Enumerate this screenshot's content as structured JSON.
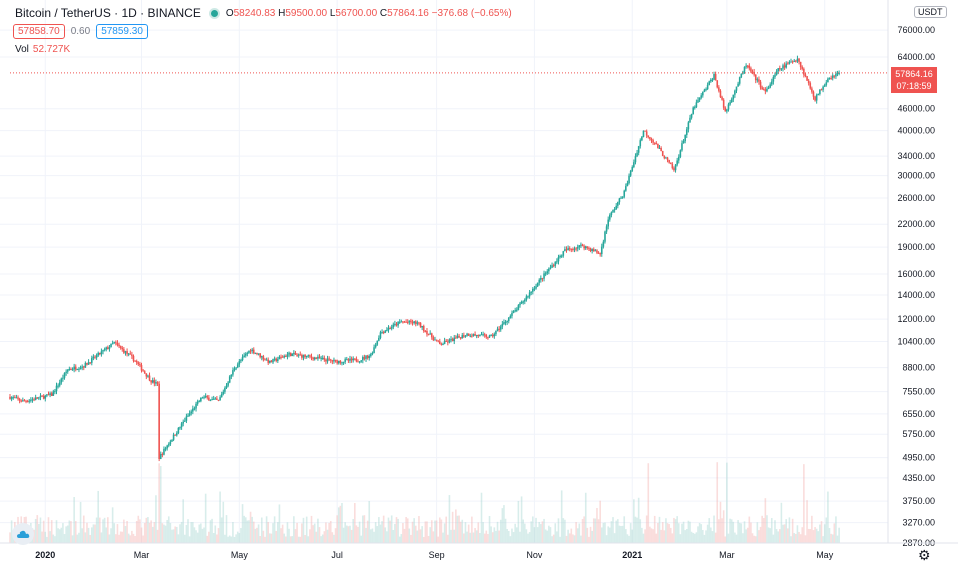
{
  "legend": {
    "symbol": "Bitcoin / TetherUS · 1D · BINANCE",
    "open_key": "O",
    "open": "58240.83",
    "high_key": "H",
    "high": "59500.00",
    "low_key": "L",
    "low": "56700.00",
    "close_key": "C",
    "close": "57864.16",
    "change": "−376.68 (−0.65%)"
  },
  "quotes": {
    "bid": "57858.70",
    "spread": "0.60",
    "ask": "57859.30"
  },
  "volume": {
    "label": "Vol",
    "value": "52.727K"
  },
  "currency": "USDT",
  "last_price": {
    "value": "57864.16",
    "countdown": "07:18:59"
  },
  "colors": {
    "up": "#26a69a",
    "down": "#ef5350",
    "grid": "#f0f3fa",
    "axis_text": "#131722"
  },
  "icons": {
    "logo": "tradingview-cloud-icon",
    "settings": "gear-icon"
  },
  "chart_data": {
    "type": "candlestick",
    "scale": "log",
    "ylim": [
      2870,
      87000
    ],
    "y_ticks": [
      {
        "label": "76000.00",
        "value": 76000
      },
      {
        "label": "64000.00",
        "value": 64000
      },
      {
        "label": "46000.00",
        "value": 46000
      },
      {
        "label": "40000.00",
        "value": 40000
      },
      {
        "label": "34000.00",
        "value": 34000
      },
      {
        "label": "30000.00",
        "value": 30000
      },
      {
        "label": "26000.00",
        "value": 26000
      },
      {
        "label": "22000.00",
        "value": 22000
      },
      {
        "label": "19000.00",
        "value": 19000
      },
      {
        "label": "16000.00",
        "value": 16000
      },
      {
        "label": "14000.00",
        "value": 14000
      },
      {
        "label": "12000.00",
        "value": 12000
      },
      {
        "label": "10400.00",
        "value": 10400
      },
      {
        "label": "8800.00",
        "value": 8800
      },
      {
        "label": "7550.00",
        "value": 7550
      },
      {
        "label": "6550.00",
        "value": 6550
      },
      {
        "label": "5750.00",
        "value": 5750
      },
      {
        "label": "4950.00",
        "value": 4950
      },
      {
        "label": "4350.00",
        "value": 4350
      },
      {
        "label": "3750.00",
        "value": 3750
      },
      {
        "label": "3270.00",
        "value": 3270
      },
      {
        "label": "2870.00",
        "value": 2870
      }
    ],
    "x_ticks": [
      {
        "label": "2020",
        "date": "2020-01-01",
        "bold": true
      },
      {
        "label": "Mar",
        "date": "2020-03-01"
      },
      {
        "label": "May",
        "date": "2020-05-01"
      },
      {
        "label": "Jul",
        "date": "2020-07-01"
      },
      {
        "label": "Sep",
        "date": "2020-09-01"
      },
      {
        "label": "Nov",
        "date": "2020-11-01"
      },
      {
        "label": "2021",
        "date": "2021-01-01",
        "bold": true
      },
      {
        "label": "Mar",
        "date": "2021-03-01"
      },
      {
        "label": "May",
        "date": "2021-05-01"
      }
    ],
    "x_range": [
      "2019-12-10",
      "2021-05-28"
    ],
    "close_path": [
      [
        "2019-12-10",
        7300
      ],
      [
        "2019-12-18",
        7100
      ],
      [
        "2019-12-25",
        7200
      ],
      [
        "2020-01-05",
        7400
      ],
      [
        "2020-01-15",
        8700
      ],
      [
        "2020-01-25",
        8900
      ],
      [
        "2020-02-05",
        9700
      ],
      [
        "2020-02-13",
        10300
      ],
      [
        "2020-02-25",
        9300
      ],
      [
        "2020-03-07",
        8100
      ],
      [
        "2020-03-11",
        7900
      ],
      [
        "2020-03-12",
        4950
      ],
      [
        "2020-03-17",
        5350
      ],
      [
        "2020-03-28",
        6300
      ],
      [
        "2020-04-08",
        7300
      ],
      [
        "2020-04-18",
        7100
      ],
      [
        "2020-04-28",
        8800
      ],
      [
        "2020-05-08",
        9900
      ],
      [
        "2020-05-20",
        9100
      ],
      [
        "2020-06-01",
        9600
      ],
      [
        "2020-06-15",
        9400
      ],
      [
        "2020-06-30",
        9150
      ],
      [
        "2020-07-15",
        9250
      ],
      [
        "2020-07-22",
        9550
      ],
      [
        "2020-07-28",
        11000
      ],
      [
        "2020-08-10",
        11800
      ],
      [
        "2020-08-20",
        11700
      ],
      [
        "2020-09-03",
        10200
      ],
      [
        "2020-09-20",
        10900
      ],
      [
        "2020-10-05",
        10700
      ],
      [
        "2020-10-21",
        12800
      ],
      [
        "2020-11-05",
        15500
      ],
      [
        "2020-11-20",
        18600
      ],
      [
        "2020-12-01",
        19200
      ],
      [
        "2020-12-12",
        18200
      ],
      [
        "2020-12-17",
        22800
      ],
      [
        "2020-12-27",
        27000
      ],
      [
        "2021-01-08",
        40000
      ],
      [
        "2021-01-15",
        37000
      ],
      [
        "2021-01-27",
        31000
      ],
      [
        "2021-02-08",
        46000
      ],
      [
        "2021-02-21",
        57000
      ],
      [
        "2021-02-28",
        45000
      ],
      [
        "2021-03-13",
        61000
      ],
      [
        "2021-03-25",
        51000
      ],
      [
        "2021-04-02",
        59000
      ],
      [
        "2021-04-14",
        63500
      ],
      [
        "2021-04-25",
        49000
      ],
      [
        "2021-05-03",
        56000
      ],
      [
        "2021-05-10",
        57864
      ]
    ],
    "volume_spike_dates": [
      "2020-03-12",
      "2020-03-13",
      "2021-01-11",
      "2021-02-23",
      "2021-03-01",
      "2021-04-18"
    ]
  }
}
